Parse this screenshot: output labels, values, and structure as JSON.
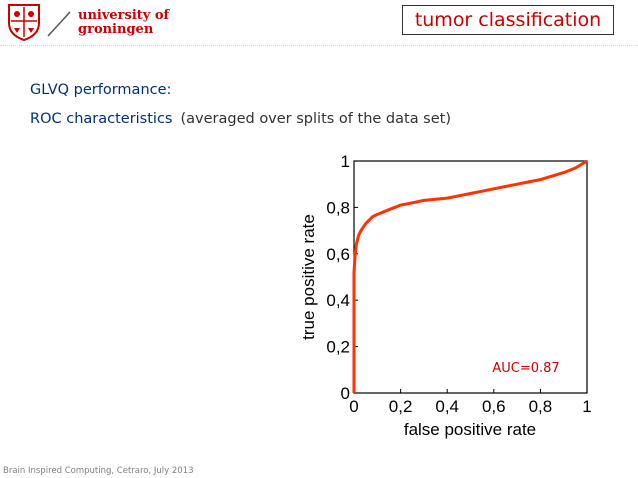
{
  "header": {
    "logo": {
      "line1": "university of",
      "line2": "groningen"
    },
    "topic": "tumor classification"
  },
  "content": {
    "heading": "GLVQ performance:",
    "subheading": "ROC characteristics",
    "subheading_note": "(averaged over splits of the data set)"
  },
  "chart_data": {
    "type": "line",
    "title": "",
    "xlabel": "false positive rate",
    "ylabel": "true positive rate",
    "xlim": [
      0,
      1
    ],
    "ylim": [
      0,
      1
    ],
    "xticks": [
      0,
      0.2,
      0.4,
      0.6,
      0.8,
      1
    ],
    "xtick_labels": [
      "0",
      "0,2",
      "0,4",
      "0,6",
      "0,8",
      "1"
    ],
    "yticks": [
      0,
      0.2,
      0.4,
      0.6,
      0.8,
      1
    ],
    "ytick_labels": [
      "0",
      "0,2",
      "0,4",
      "0,6",
      "0,8",
      "1"
    ],
    "grid": false,
    "annotation": "AUC=0.87",
    "series": [
      {
        "color": "#ff3300",
        "x": [
          0,
          0,
          0.005,
          0.01,
          0.02,
          0.03,
          0.05,
          0.08,
          0.1,
          0.15,
          0.2,
          0.25,
          0.3,
          0.35,
          0.4,
          0.45,
          0.5,
          0.55,
          0.6,
          0.65,
          0.7,
          0.75,
          0.8,
          0.85,
          0.9,
          0.95,
          1.0
        ],
        "y": [
          0,
          0.52,
          0.6,
          0.64,
          0.68,
          0.7,
          0.73,
          0.76,
          0.77,
          0.79,
          0.81,
          0.82,
          0.83,
          0.835,
          0.84,
          0.85,
          0.86,
          0.87,
          0.88,
          0.89,
          0.9,
          0.91,
          0.92,
          0.935,
          0.95,
          0.97,
          1.0
        ]
      }
    ]
  },
  "footer": {
    "text": "Brain Inspired Computing, Cetraro, July 2013"
  }
}
